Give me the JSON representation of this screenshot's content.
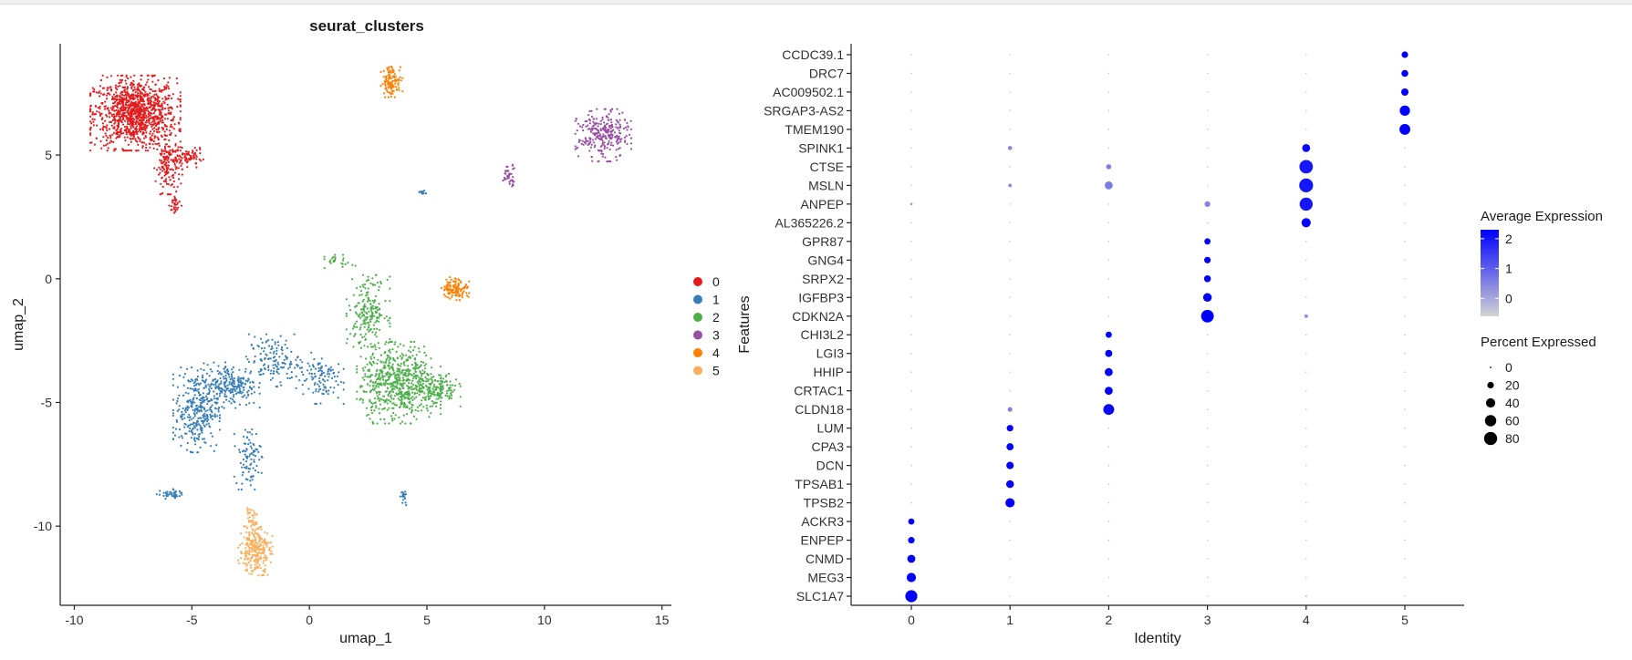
{
  "colors": {
    "cluster": [
      "#E41A1C",
      "#377EB8",
      "#4DAF4A",
      "#984EA3",
      "#FF7F00",
      "#F9AF5B"
    ],
    "expr_low": "#D3D3D3",
    "expr_high": "#0000FF",
    "axis": "#222222"
  },
  "umap": {
    "title": "seurat_clusters",
    "xlabel": "umap_1",
    "ylabel": "umap_2",
    "xlim": [
      -10.6,
      15.4
    ],
    "ylim": [
      -13.2,
      9.5
    ],
    "xticks": [
      -10,
      -5,
      0,
      5,
      10,
      15
    ],
    "xtick_labels": [
      "-10",
      "-5",
      "0",
      "5",
      "10",
      "15"
    ],
    "yticks": [
      -10,
      -5,
      0,
      5
    ],
    "ytick_labels": [
      "-10",
      "-5",
      "0",
      "5"
    ],
    "legend": [
      "0",
      "1",
      "2",
      "3",
      "4",
      "5"
    ]
  },
  "chart_data": [
    {
      "type": "scatter",
      "title": "seurat_clusters",
      "xlabel": "umap_1",
      "ylabel": "umap_2",
      "xlim": [
        -10.6,
        15.4
      ],
      "ylim": [
        -13.2,
        9.5
      ],
      "legend_placement": "right",
      "clusters": [
        {
          "name": "0",
          "regions": [
            {
              "center": [
                -7.4,
                6.7
              ],
              "spread": [
                1.45,
                1.15
              ],
              "n": 1100
            },
            {
              "center": [
                -6.0,
                4.6
              ],
              "spread": [
                0.45,
                0.9
              ],
              "n": 160
            },
            {
              "center": [
                -5.1,
                4.9
              ],
              "spread": [
                0.45,
                0.3
              ],
              "n": 70
            },
            {
              "center": [
                -5.7,
                3.0
              ],
              "spread": [
                0.2,
                0.4
              ],
              "n": 30
            }
          ]
        },
        {
          "name": "1",
          "regions": [
            {
              "center": [
                -4.8,
                -5.3
              ],
              "spread": [
                0.75,
                1.3
              ],
              "n": 330
            },
            {
              "center": [
                -3.3,
                -4.3
              ],
              "spread": [
                0.9,
                0.7
              ],
              "n": 220
            },
            {
              "center": [
                -2.6,
                -7.2
              ],
              "spread": [
                0.45,
                1.0
              ],
              "n": 90
            },
            {
              "center": [
                -1.5,
                -3.3
              ],
              "spread": [
                0.9,
                0.8
              ],
              "n": 140
            },
            {
              "center": [
                0.4,
                -4.0
              ],
              "spread": [
                0.8,
                0.8
              ],
              "n": 110
            },
            {
              "center": [
                -5.9,
                -8.7
              ],
              "spread": [
                0.45,
                0.15
              ],
              "n": 45
            },
            {
              "center": [
                4.0,
                -8.9
              ],
              "spread": [
                0.12,
                0.25
              ],
              "n": 18
            },
            {
              "center": [
                4.8,
                3.5
              ],
              "spread": [
                0.12,
                0.1
              ],
              "n": 14
            }
          ]
        },
        {
          "name": "2",
          "regions": [
            {
              "center": [
                3.8,
                -4.2
              ],
              "spread": [
                1.35,
                1.25
              ],
              "n": 650
            },
            {
              "center": [
                2.5,
                -1.3
              ],
              "spread": [
                0.7,
                1.1
              ],
              "n": 200
            },
            {
              "center": [
                5.5,
                -4.5
              ],
              "spread": [
                0.7,
                0.5
              ],
              "n": 130
            },
            {
              "center": [
                1.3,
                0.7
              ],
              "spread": [
                0.5,
                0.2
              ],
              "n": 25
            }
          ]
        },
        {
          "name": "3",
          "regions": [
            {
              "center": [
                12.5,
                5.8
              ],
              "spread": [
                0.9,
                0.8
              ],
              "n": 280
            },
            {
              "center": [
                8.5,
                4.2
              ],
              "spread": [
                0.25,
                0.35
              ],
              "n": 40
            }
          ]
        },
        {
          "name": "4",
          "regions": [
            {
              "center": [
                3.5,
                8.0
              ],
              "spread": [
                0.35,
                0.5
              ],
              "n": 110
            },
            {
              "center": [
                6.2,
                -0.4
              ],
              "spread": [
                0.45,
                0.35
              ],
              "n": 120
            }
          ]
        },
        {
          "name": "5",
          "regions": [
            {
              "center": [
                -2.3,
                -11.0
              ],
              "spread": [
                0.55,
                0.75
              ],
              "n": 260
            },
            {
              "center": [
                -2.5,
                -9.8
              ],
              "spread": [
                0.22,
                0.4
              ],
              "n": 40
            }
          ]
        }
      ]
    },
    {
      "type": "dot",
      "xlabel": "Identity",
      "ylabel": "Features",
      "categories": [
        "0",
        "1",
        "2",
        "3",
        "4",
        "5"
      ],
      "features": [
        "SLC1A7",
        "MEG3",
        "CNMD",
        "ENPEP",
        "ACKR3",
        "TPSB2",
        "TPSAB1",
        "DCN",
        "CPA3",
        "LUM",
        "CLDN18",
        "CRTAC1",
        "HHIP",
        "LGI3",
        "CHI3L2",
        "CDKN2A",
        "IGFBP3",
        "SRPX2",
        "GNG4",
        "GPR87",
        "AL365226.2",
        "ANPEP",
        "MSLN",
        "CTSE",
        "SPINK1",
        "TMEM190",
        "SRGAP3-AS2",
        "AC009502.1",
        "DRC7",
        "CCDC39.1"
      ],
      "pct_expressed": [
        [
          68,
          1,
          1,
          1,
          2,
          1
        ],
        [
          40,
          1,
          1,
          1,
          1,
          1
        ],
        [
          30,
          1,
          1,
          1,
          1,
          1
        ],
        [
          20,
          1,
          1,
          1,
          1,
          1
        ],
        [
          18,
          1,
          1,
          1,
          1,
          1
        ],
        [
          1,
          40,
          1,
          1,
          1,
          1
        ],
        [
          1,
          28,
          1,
          1,
          1,
          1
        ],
        [
          1,
          26,
          1,
          1,
          1,
          1
        ],
        [
          1,
          24,
          1,
          1,
          1,
          1
        ],
        [
          1,
          20,
          1,
          1,
          1,
          1
        ],
        [
          1,
          10,
          55,
          1,
          1,
          1
        ],
        [
          1,
          1,
          30,
          1,
          1,
          1
        ],
        [
          1,
          1,
          30,
          1,
          1,
          1
        ],
        [
          1,
          1,
          24,
          1,
          1,
          1
        ],
        [
          1,
          1,
          18,
          1,
          1,
          1
        ],
        [
          1,
          1,
          1,
          75,
          6,
          1
        ],
        [
          1,
          1,
          1,
          35,
          1,
          1
        ],
        [
          1,
          1,
          1,
          22,
          1,
          1
        ],
        [
          1,
          1,
          1,
          20,
          1,
          1
        ],
        [
          1,
          1,
          1,
          18,
          1,
          1
        ],
        [
          1,
          1,
          1,
          1,
          40,
          1
        ],
        [
          3,
          1,
          1,
          15,
          80,
          1
        ],
        [
          1,
          6,
          30,
          1,
          90,
          1
        ],
        [
          1,
          1,
          12,
          1,
          85,
          1
        ],
        [
          1,
          8,
          1,
          1,
          30,
          1
        ],
        [
          1,
          1,
          1,
          1,
          1,
          55
        ],
        [
          1,
          1,
          1,
          1,
          1,
          50
        ],
        [
          1,
          1,
          1,
          1,
          1,
          25
        ],
        [
          1,
          1,
          1,
          1,
          1,
          22
        ],
        [
          1,
          1,
          1,
          1,
          1,
          20
        ]
      ],
      "avg_expression": [
        [
          2.3,
          -0.4,
          -0.4,
          -0.4,
          -0.4,
          -0.4
        ],
        [
          2.3,
          -0.4,
          -0.4,
          -0.4,
          -0.4,
          -0.4
        ],
        [
          2.3,
          -0.4,
          -0.4,
          -0.4,
          -0.4,
          -0.4
        ],
        [
          2.3,
          -0.4,
          -0.4,
          -0.4,
          -0.4,
          -0.4
        ],
        [
          2.3,
          -0.4,
          -0.4,
          -0.4,
          -0.4,
          -0.4
        ],
        [
          -0.4,
          2.3,
          -0.4,
          -0.4,
          -0.4,
          -0.4
        ],
        [
          -0.4,
          2.3,
          -0.4,
          -0.4,
          -0.4,
          -0.4
        ],
        [
          -0.4,
          2.3,
          -0.4,
          -0.4,
          -0.4,
          -0.4
        ],
        [
          -0.4,
          2.3,
          -0.4,
          -0.4,
          -0.4,
          -0.4
        ],
        [
          -0.4,
          2.3,
          -0.4,
          -0.4,
          -0.4,
          -0.4
        ],
        [
          -0.4,
          0.6,
          2.2,
          -0.4,
          -0.4,
          -0.4
        ],
        [
          -0.4,
          -0.4,
          2.3,
          -0.4,
          -0.4,
          -0.4
        ],
        [
          -0.4,
          -0.4,
          2.3,
          -0.4,
          -0.4,
          -0.4
        ],
        [
          -0.4,
          -0.4,
          2.3,
          -0.4,
          -0.4,
          -0.4
        ],
        [
          -0.4,
          -0.4,
          2.3,
          -0.4,
          -0.4,
          -0.4
        ],
        [
          -0.4,
          -0.4,
          -0.4,
          2.3,
          0.4,
          -0.4
        ],
        [
          -0.4,
          -0.4,
          -0.4,
          2.3,
          -0.4,
          -0.4
        ],
        [
          -0.4,
          -0.4,
          -0.4,
          2.3,
          -0.4,
          -0.4
        ],
        [
          -0.4,
          -0.4,
          -0.4,
          2.3,
          -0.4,
          -0.4
        ],
        [
          -0.4,
          -0.4,
          -0.4,
          2.3,
          -0.4,
          -0.4
        ],
        [
          -0.4,
          -0.4,
          -0.4,
          -0.4,
          2.2,
          -0.4
        ],
        [
          0.2,
          -0.4,
          -0.4,
          0.5,
          2.0,
          -0.4
        ],
        [
          -0.4,
          0.4,
          0.6,
          -0.4,
          2.0,
          -0.4
        ],
        [
          -0.4,
          -0.4,
          0.6,
          -0.4,
          2.0,
          -0.4
        ],
        [
          -0.4,
          0.5,
          -0.4,
          -0.4,
          2.2,
          -0.4
        ],
        [
          -0.4,
          -0.4,
          -0.4,
          -0.4,
          -0.4,
          2.3
        ],
        [
          -0.4,
          -0.4,
          -0.4,
          -0.4,
          -0.4,
          2.3
        ],
        [
          -0.4,
          -0.4,
          -0.4,
          -0.4,
          -0.4,
          2.3
        ],
        [
          -0.4,
          -0.4,
          -0.4,
          -0.4,
          -0.4,
          2.3
        ],
        [
          -0.4,
          -0.4,
          -0.4,
          -0.4,
          -0.4,
          2.3
        ]
      ],
      "color_range": [
        -0.6,
        2.3
      ],
      "legend_placement": "right"
    }
  ],
  "dotplot": {
    "xlabel": "Identity",
    "ylabel": "Features",
    "legend_color_title": "Average Expression",
    "legend_color_ticks": [
      "2",
      "1",
      "0"
    ],
    "legend_color_values": [
      2,
      1,
      0
    ],
    "legend_size_title": "Percent Expressed",
    "legend_size_ticks": [
      "0",
      "20",
      "40",
      "60",
      "80"
    ],
    "legend_size_values": [
      0,
      20,
      40,
      60,
      80
    ]
  }
}
